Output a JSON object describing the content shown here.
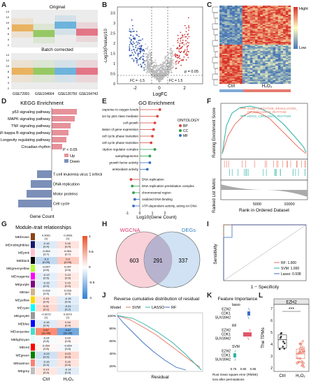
{
  "panels": {
    "A": {
      "label": "A",
      "title_top": "Original",
      "title_bottom": "Batch corrected",
      "datasets": [
        "GSE72991",
        "GSE104664",
        "GSE126750",
        "GSE164742"
      ],
      "colors": [
        "#e8a33a",
        "#7fbf3f",
        "#4aa3d8",
        "#e0556a"
      ],
      "yticks": [
        "14",
        "12",
        "10",
        "8",
        "6",
        "4",
        "2"
      ]
    },
    "B": {
      "label": "B",
      "xlabel": "LogFC",
      "ylabel": "-Log10(Pvalue)/10",
      "fc_left": "FC = -1.5",
      "fc_right": "FC = 1.5",
      "p_label": "p = 0.05",
      "xticks": [
        "-2",
        "0",
        "2"
      ],
      "yticks": [
        "0",
        "0.5",
        "1",
        "1.5",
        "2",
        "2.5",
        "3",
        "3.5"
      ]
    },
    "C": {
      "label": "C",
      "legend_high": "Hight",
      "legend_low": "Low",
      "groups": [
        "Ctrl",
        "H₂O₂"
      ]
    },
    "D": {
      "label": "D",
      "title": "KEGG Enrichment",
      "xlabel": "Gene Count",
      "p_label": "P < 0.05",
      "legend": [
        {
          "name": "Up",
          "color": "#e6929b"
        },
        {
          "name": "Down",
          "color": "#7b8fb8"
        }
      ],
      "up_terms": [
        "p53 signaling pathway",
        "MAPK signaling pathway",
        "TNF signaling pathway",
        "NF-kappa B signaling pathway",
        "Longevity regulating pathway",
        "Circadian rhythm"
      ],
      "up_values": [
        6,
        5.5,
        4.5,
        4,
        3.5,
        2.5
      ],
      "down_terms": [
        "T-cell leukemia virus 1 infection",
        "DNA replication",
        "Motor proteins",
        "Cell cycle"
      ],
      "down_values": [
        3.5,
        5,
        6,
        8
      ]
    },
    "E": {
      "label": "E",
      "title": "GO Enrichment",
      "xlabel": "Log10(Gene Count)",
      "ontology_title": "ONTOLOGY",
      "ontology": [
        {
          "name": "BP",
          "color": "#d9463e"
        },
        {
          "name": "CC",
          "color": "#2e9e4f"
        },
        {
          "name": "MF",
          "color": "#3a6fc4"
        }
      ],
      "xticks": [
        "-1",
        "0",
        "1",
        "2"
      ],
      "up_terms": [
        "response to oxygen levels",
        "signal transduction by p53 class mediator",
        "cell growth",
        "circadian regulation of gene expression",
        "regulation of mitotic cell cycle phase transition",
        "regulation of cell cycle phase transition",
        "RNA polymerase II transcription regulator complex",
        "autophagosome",
        "growth factor activity",
        "antioxidant activity"
      ],
      "down_terms": [
        "DNA replication",
        "DNA replication preinitiation complex",
        "chromosomal region",
        "oxidized DNA binding",
        "ATP-dependent activity, acting on DNA"
      ],
      "up_values": [
        1.6,
        1.4,
        1.2,
        1.1,
        1.0,
        0.9,
        1.2,
        0.8,
        0.8,
        0.6
      ],
      "down_values": [
        -0.7,
        -0.6,
        -0.5,
        -0.4,
        -0.5
      ]
    },
    "F": {
      "label": "F",
      "ylabel_top": "Running Enrichment Score",
      "ylabel_bottom": "Ranked List Metric",
      "xlabel": "Rank in Ordered Dataset",
      "xticks": [
        "5000",
        "10000"
      ],
      "legend": [
        {
          "name": "GOBP_NEGATIVE_REGULATION_OF_CIRCADIAN_RHYTHM",
          "color": "#e8735f"
        },
        {
          "name": "KEGG_CIRCADIAN_RHYTHM",
          "color": "#2bb3a6"
        }
      ]
    },
    "G": {
      "label": "G",
      "title": "Module–trait relationships",
      "cols": [
        "Ctrl",
        "H₂O₂"
      ],
      "modules": [
        {
          "name": "MEbrown",
          "c1": "0.0061",
          "p1": "(1)",
          "c2": "-0.0061",
          "p2": "(1)"
        },
        {
          "name": "MEmidnightblue",
          "c1": "-0.16",
          "p1": "(0.4)",
          "c2": "0.16",
          "p2": "(0.4)"
        },
        {
          "name": "MEpink",
          "c1": "-0.064",
          "p1": "(0.7)",
          "c2": "0.064",
          "p2": "(0.7)"
        },
        {
          "name": "MEblack",
          "c1": "-0.3",
          "p1": "(0.09)",
          "c2": "0.3",
          "p2": "(0.09)"
        },
        {
          "name": "MEgreenyellow",
          "c1": "-0.047",
          "p1": "(0.8)",
          "c2": "0.047",
          "p2": "(0.8)"
        },
        {
          "name": "MEmagenta",
          "c1": "-0.13",
          "p1": "(0.5)",
          "c2": "0.13",
          "p2": "(0.5)"
        },
        {
          "name": "MEpurple",
          "c1": "-0.15",
          "p1": "(0.4)",
          "c2": "0.15",
          "p2": "(0.4)"
        },
        {
          "name": "MEtan",
          "c1": "-0.033",
          "p1": "(0.9)",
          "c2": "0.033",
          "p2": "(0.9)"
        },
        {
          "name": "MEyellow",
          "c1": "0.15",
          "p1": "(0.4)",
          "c2": "-0.15",
          "p2": "(0.4)"
        },
        {
          "name": "MEcyan",
          "c1": "0.21",
          "p1": "(0.2)",
          "c2": "-0.21",
          "p2": "(0.2)"
        },
        {
          "name": "MEgrey60",
          "c1": "-0.0072",
          "p1": "(1)",
          "c2": "0.0072",
          "p2": "(1)"
        },
        {
          "name": "MEblue",
          "c1": "-0.16",
          "p1": "(0.4)",
          "c2": "0.16",
          "p2": "(0.4)"
        },
        {
          "name": "MEturquoise",
          "c1": "0.67",
          "p1": "(2e-05)",
          "c2": "-0.67",
          "p2": "(2e-05)"
        },
        {
          "name": "MElightcyan",
          "c1": "-0.04",
          "p1": "(0.8)",
          "c2": "0.04",
          "p2": "(0.8)"
        },
        {
          "name": "MEred",
          "c1": "0.054",
          "p1": "(0.8)",
          "c2": "-0.054",
          "p2": "(0.8)"
        },
        {
          "name": "MEgreen",
          "c1": "-0.23",
          "p1": "(0.2)",
          "c2": "0.23",
          "p2": "(0.2)"
        },
        {
          "name": "MEsalmon",
          "c1": "-0.16",
          "p1": "(0.4)",
          "c2": "0.16",
          "p2": "(0.4)"
        },
        {
          "name": "MEgrey",
          "c1": "0.14",
          "p1": "(0.4)",
          "c2": "-0.14",
          "p2": "(0.4)"
        }
      ],
      "scale": [
        "1",
        "0.5",
        "0",
        "-0.5",
        "-1"
      ]
    },
    "H": {
      "label": "H",
      "left_name": "WGCNA",
      "right_name": "DEGs",
      "left_only": "603",
      "overlap": "291",
      "right_only": "337"
    },
    "I": {
      "label": "I",
      "ylabel": "Sensitivity",
      "xlabel": "1 − Specificity",
      "legend": [
        {
          "name": "RF: 1.000",
          "color": "#e8735f"
        },
        {
          "name": "SVM: 1.000",
          "color": "#2bb3a6"
        },
        {
          "name": "Lasso: 0.938",
          "color": "#3a6fc4"
        }
      ]
    },
    "J": {
      "label": "J",
      "title": "Reverse cumulative distribution of residual",
      "xlabel": "Residual",
      "model_label": "Model",
      "legend": [
        {
          "name": "SVM",
          "color": "#e8735f"
        },
        {
          "name": "LASSO",
          "color": "#2bb3a6"
        },
        {
          "name": "RF",
          "color": "#3a6fc4"
        }
      ],
      "yticks": [
        "100%",
        "80%",
        "60%",
        "40%",
        "20%"
      ]
    },
    "K": {
      "label": "K",
      "title": "Feature Importance",
      "xlabel": "Root mean square error (RMSE) loss after permutations",
      "groups": [
        {
          "name": "lasso",
          "genes": [
            "EZH2",
            "CDK1",
            "SUV39H2"
          ]
        },
        {
          "name": "RF",
          "genes": [
            "EZH2",
            "CDK1",
            "SUV39H2"
          ]
        },
        {
          "name": "SVM",
          "genes": [
            "EZH2",
            "CDK1",
            "SUV39H2"
          ]
        }
      ],
      "xticks": [
        "0.75",
        "0.80",
        "0.85"
      ]
    },
    "L": {
      "label": "L",
      "title": "EZH2",
      "ylabel": "The TPMs",
      "sig": "***",
      "groups": [
        "Ctrl",
        "H₂O₂"
      ],
      "yticks": [
        "7",
        "6",
        "5",
        "4",
        "3",
        "2"
      ]
    }
  }
}
